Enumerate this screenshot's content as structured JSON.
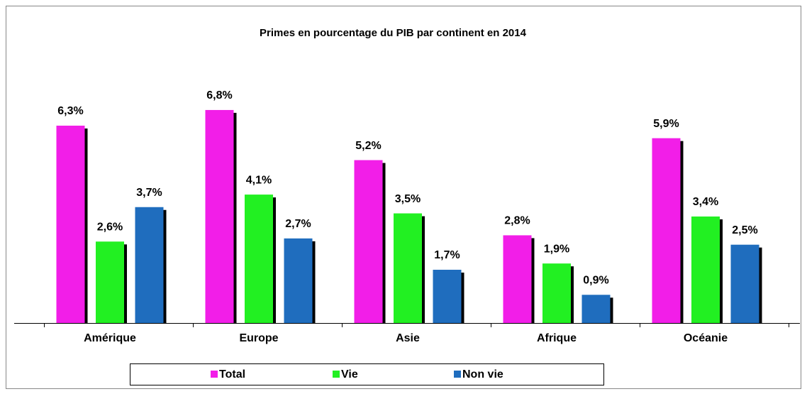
{
  "chart_data": {
    "type": "bar",
    "title": "Primes  en pourcentage du PIB par continent en 2014",
    "categories": [
      "Amérique",
      "Europe",
      "Asie",
      "Afrique",
      "Océanie"
    ],
    "series": [
      {
        "name": "Total",
        "color": "#f21ee8",
        "values": [
          6.3,
          6.8,
          5.2,
          2.8,
          5.9
        ],
        "value_labels": [
          "6,3%",
          "6,8%",
          "5,2%",
          "2,8%",
          "5,9%"
        ]
      },
      {
        "name": "Vie",
        "color": "#22f022",
        "values": [
          2.6,
          4.1,
          3.5,
          1.9,
          3.4
        ],
        "value_labels": [
          "2,6%",
          "4,1%",
          "3,5%",
          "1,9%",
          "3,4%"
        ]
      },
      {
        "name": "Non vie",
        "color": "#1f6dbe",
        "values": [
          3.7,
          2.7,
          1.7,
          0.9,
          2.5
        ],
        "value_labels": [
          "3,7%",
          "2,7%",
          "1,7%",
          "0,9%",
          "2,5%"
        ]
      }
    ],
    "ylim": [
      0,
      8
    ],
    "legend": "bottom"
  }
}
